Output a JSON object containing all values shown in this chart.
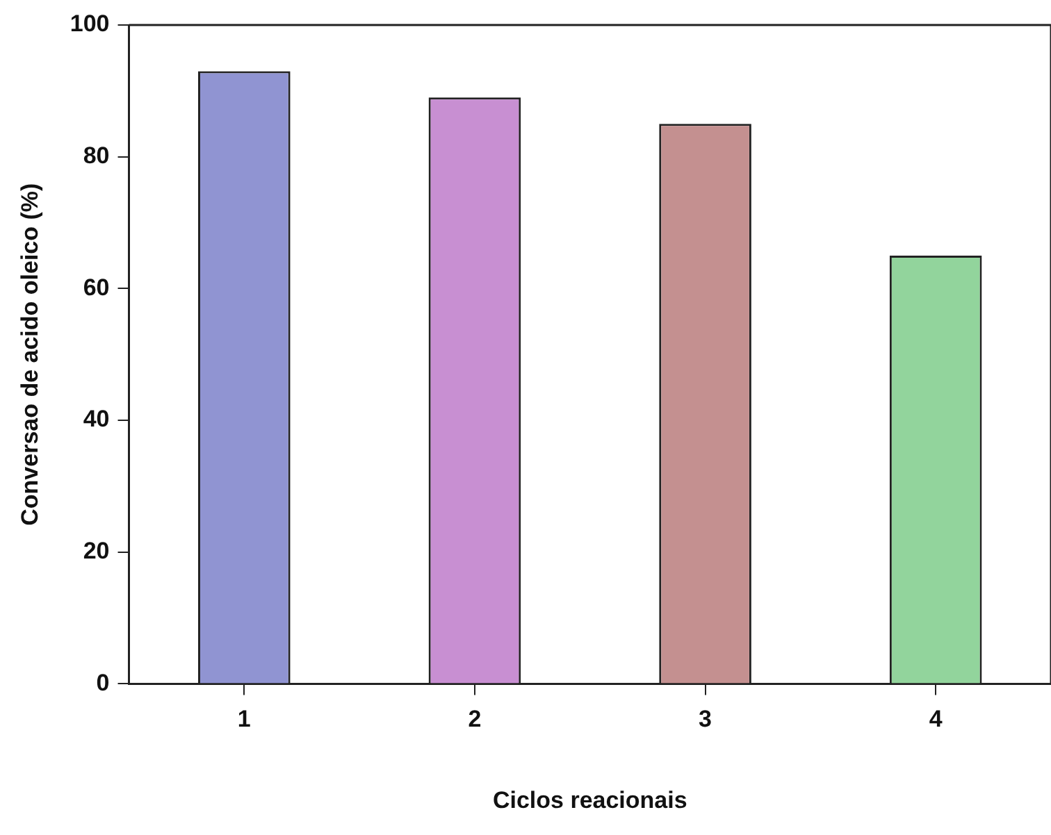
{
  "chart_data": {
    "type": "bar",
    "xlabel": "Ciclos reacionais",
    "ylabel": "Conversao de acido oleico (%)",
    "categories": [
      "1",
      "2",
      "3",
      "4"
    ],
    "values": [
      93,
      89,
      85,
      65
    ],
    "colors": [
      "#9094d2",
      "#c88fd2",
      "#c49090",
      "#92d49c"
    ],
    "ylim": [
      0,
      100
    ],
    "yticks": [
      0,
      20,
      40,
      60,
      80,
      100
    ],
    "grid": false,
    "legend": false
  }
}
